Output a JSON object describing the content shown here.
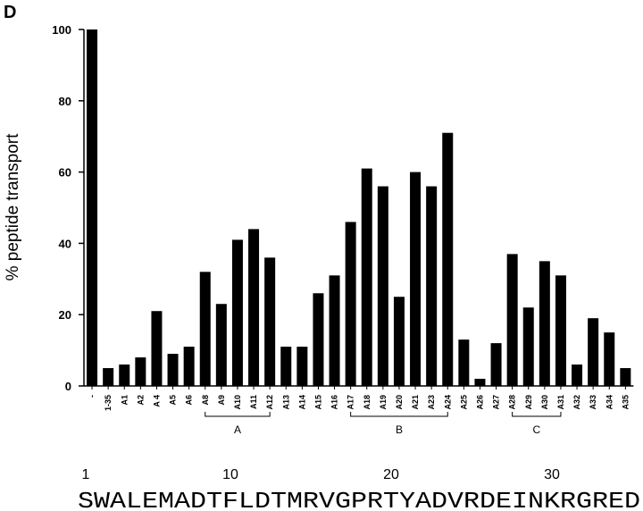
{
  "panel_label": "D",
  "chart_data": {
    "type": "bar",
    "ylabel": "% peptide transport",
    "categories": [
      "-",
      "1-35",
      "A1",
      "A2",
      "A 4",
      "A5",
      "A6",
      "A8",
      "A9",
      "A10",
      "A11",
      "A12",
      "A13",
      "A14",
      "A15",
      "A16",
      "A17",
      "A18",
      "A19",
      "A20",
      "A21",
      "A23",
      "A24",
      "A25",
      "A26",
      "A27",
      "A28",
      "A29",
      "A30",
      "A31",
      "A32",
      "A33",
      "A34",
      "A35"
    ],
    "values": [
      100,
      5,
      6,
      8,
      21,
      9,
      11,
      32,
      23,
      41,
      44,
      36,
      11,
      11,
      26,
      31,
      46,
      61,
      56,
      25,
      60,
      56,
      71,
      13,
      2,
      12,
      37,
      22,
      35,
      31,
      6,
      19,
      15,
      5
    ],
    "color": "#000000",
    "ylim": [
      0,
      100
    ],
    "yticks": [
      0,
      20,
      40,
      60,
      80,
      100
    ],
    "grid": false,
    "brackets": [
      "A",
      "B",
      "C"
    ]
  },
  "sequence": {
    "ticks": [
      1,
      10,
      20,
      30
    ],
    "text": "SWALEMADTFLDTMRVGPRTYADVRDEINKRGRED"
  }
}
